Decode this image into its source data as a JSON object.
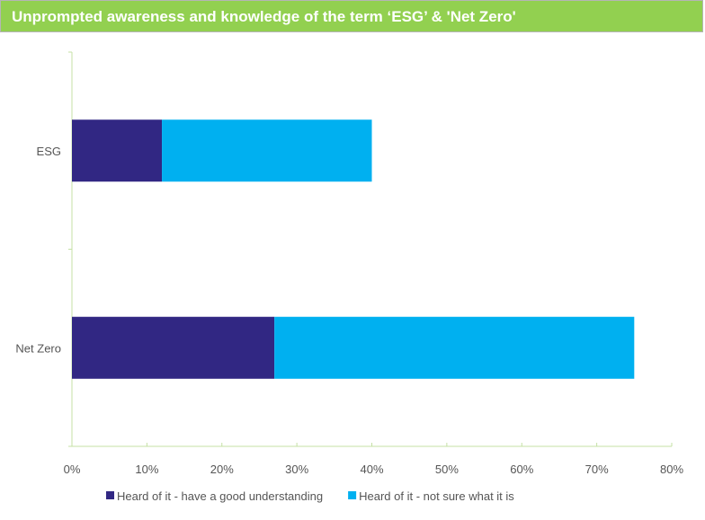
{
  "chart_data": {
    "type": "bar",
    "orientation": "horizontal",
    "stacked": true,
    "title": "Unprompted awareness and knowledge of the term ‘ESG’ & 'Net Zero'",
    "categories": [
      "ESG",
      "Net Zero"
    ],
    "series": [
      {
        "name": "Heard of it - have a good understanding",
        "values": [
          12,
          27
        ],
        "color": "#312783"
      },
      {
        "name": "Heard of it - not sure what it is",
        "values": [
          28,
          48
        ],
        "color": "#00b0f0"
      }
    ],
    "xlim": [
      0,
      80
    ],
    "xticks": [
      "0%",
      "10%",
      "20%",
      "30%",
      "40%",
      "50%",
      "60%",
      "70%",
      "80%"
    ],
    "grid": false,
    "legend": "bottom",
    "colors": {
      "title_bar": "#92d050",
      "axis": "#c5e0a5"
    }
  }
}
